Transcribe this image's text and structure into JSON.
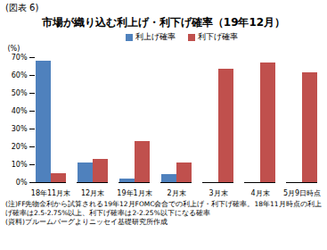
{
  "chart_data": {
    "type": "bar",
    "figure_label": "(図表 6)",
    "title": "市場が織り込む利上げ・利下げ確率（19年12月）",
    "ylabel": "(%)",
    "categories": [
      "18年11月末",
      "12月末",
      "19年1月末",
      "2月末",
      "3月末",
      "4月末",
      "5月9日時点"
    ],
    "series": [
      {
        "name": "利上げ確率",
        "color": "#4f81bd",
        "values": [
          68,
          11,
          2,
          4.5,
          0,
          0,
          0
        ]
      },
      {
        "name": "利下げ確率",
        "color": "#c0504d",
        "values": [
          5,
          13,
          23,
          11,
          63.5,
          67,
          61.5
        ]
      }
    ],
    "ylim": [
      0,
      70
    ],
    "yticks": [
      {
        "value": 0,
        "label": "0%"
      },
      {
        "value": 10,
        "label": "10%"
      },
      {
        "value": 20,
        "label": "20%"
      },
      {
        "value": 30,
        "label": "30%"
      },
      {
        "value": 40,
        "label": "40%"
      },
      {
        "value": 50,
        "label": "50%"
      },
      {
        "value": 60,
        "label": "60%"
      },
      {
        "value": 70,
        "label": "70%"
      }
    ],
    "grid": false,
    "legend": "top",
    "notes": [
      "(注)FF先物金利から試算される19年12月FOMC会合での利上げ・利下げ確率。18年11月時点の利上げ確率は2.5-2.75%以上、利下げ確率は2-2.25%以下になる確率",
      "(資料)ブルームバーグよりニッセイ基礎研究所作成"
    ]
  }
}
